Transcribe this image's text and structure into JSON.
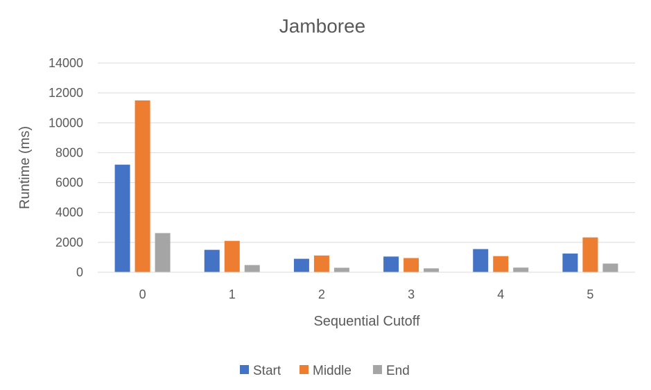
{
  "chart_data": {
    "type": "bar",
    "title": "Jamboree",
    "xlabel": "Sequential Cutoff",
    "ylabel": "Runtime (ms)",
    "categories": [
      "0",
      "1",
      "2",
      "3",
      "4",
      "5"
    ],
    "series": [
      {
        "name": "Start",
        "color": "#4472C4",
        "values": [
          7200,
          1500,
          900,
          1050,
          1550,
          1250
        ]
      },
      {
        "name": "Middle",
        "color": "#ED7D31",
        "values": [
          11500,
          2100,
          1120,
          950,
          1080,
          2330
        ]
      },
      {
        "name": "End",
        "color": "#A5A5A5",
        "values": [
          2620,
          480,
          300,
          260,
          310,
          580
        ]
      }
    ],
    "ylim": [
      0,
      14000
    ],
    "yticks": [
      "0",
      "2000",
      "4000",
      "6000",
      "8000",
      "10000",
      "12000",
      "14000"
    ],
    "grid": true,
    "legend_position": "bottom"
  }
}
